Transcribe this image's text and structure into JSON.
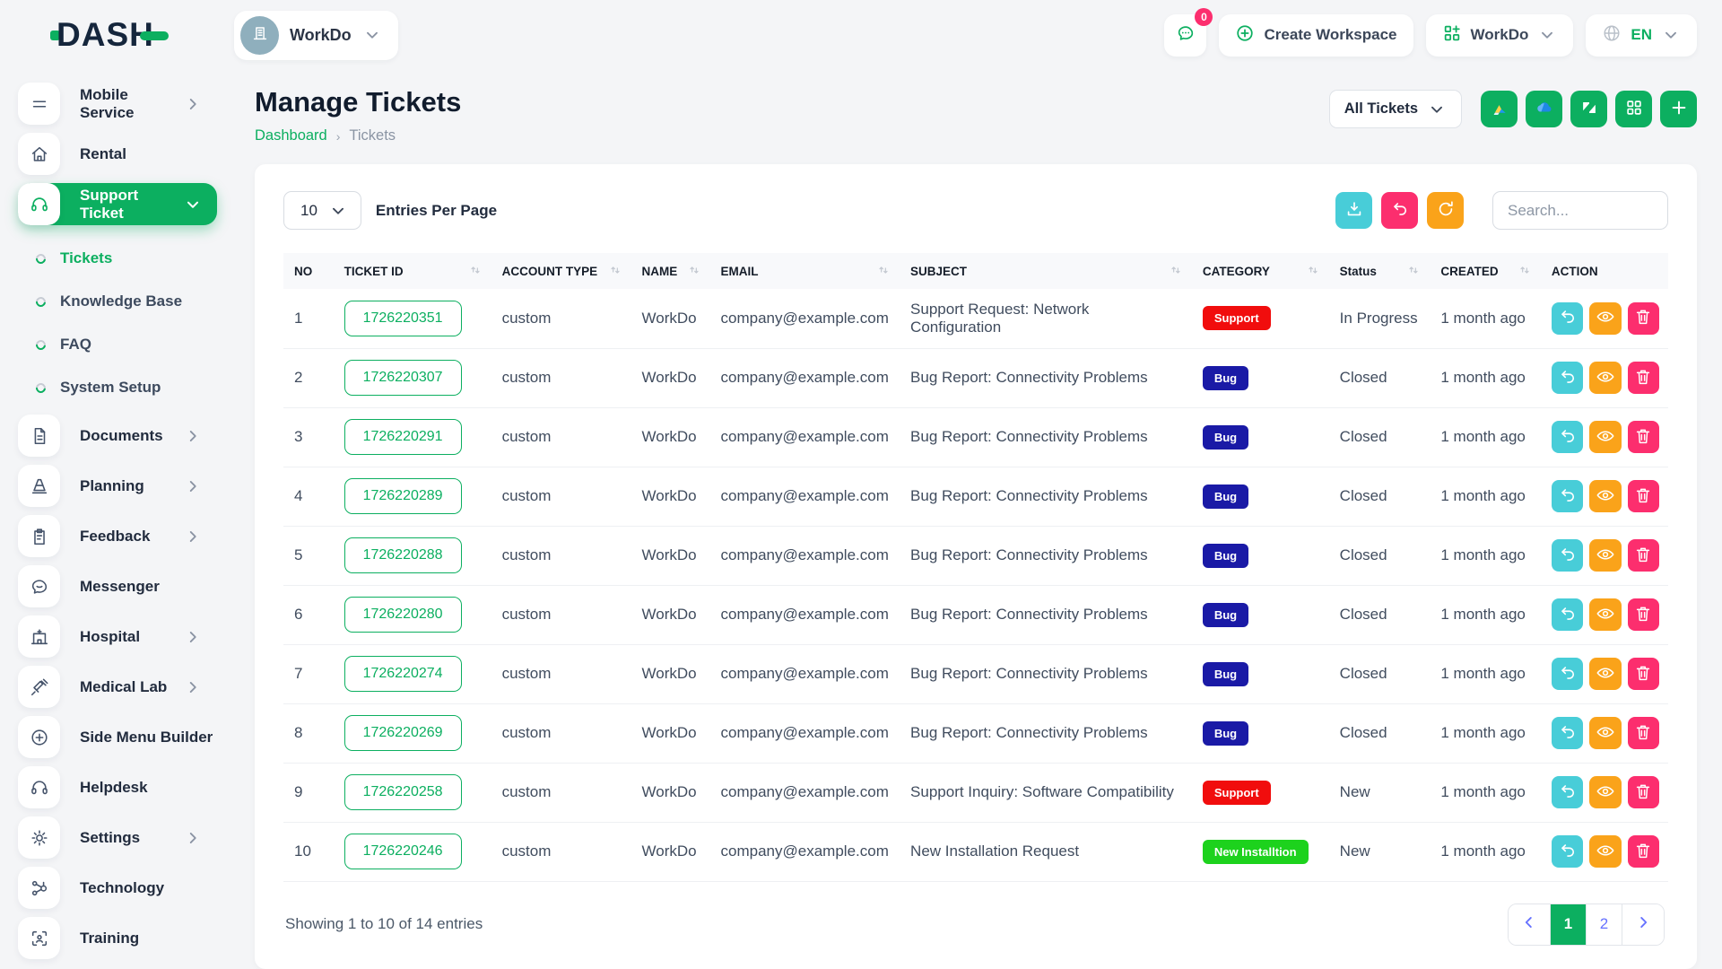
{
  "brand": {
    "logo_text": "DASH"
  },
  "topbar": {
    "workspace_name": "WorkDo",
    "chat_badge": "0",
    "create_workspace_label": "Create Workspace",
    "app_switcher_label": "WorkDo",
    "language": "EN"
  },
  "sidebar": {
    "items": [
      {
        "label": "Mobile Service",
        "icon": "menu",
        "chevron": "right"
      },
      {
        "label": "Rental",
        "icon": "home"
      },
      {
        "label": "Support Ticket",
        "icon": "headset",
        "chevron": "down",
        "active": true,
        "children": [
          {
            "label": "Tickets",
            "active": true
          },
          {
            "label": "Knowledge Base"
          },
          {
            "label": "FAQ"
          },
          {
            "label": "System Setup"
          }
        ]
      },
      {
        "label": "Documents",
        "icon": "document",
        "chevron": "right"
      },
      {
        "label": "Planning",
        "icon": "cone",
        "chevron": "right"
      },
      {
        "label": "Feedback",
        "icon": "clipboard",
        "chevron": "right"
      },
      {
        "label": "Messenger",
        "icon": "chat"
      },
      {
        "label": "Hospital",
        "icon": "hospital",
        "chevron": "right"
      },
      {
        "label": "Medical Lab",
        "icon": "syringe",
        "chevron": "right"
      },
      {
        "label": "Side Menu Builder",
        "icon": "plus-circle"
      },
      {
        "label": "Helpdesk",
        "icon": "headphones"
      },
      {
        "label": "Settings",
        "icon": "gear",
        "chevron": "right"
      },
      {
        "label": "Technology",
        "icon": "network"
      },
      {
        "label": "Training",
        "icon": "scan"
      }
    ]
  },
  "page": {
    "title": "Manage Tickets",
    "breadcrumb": [
      "Dashboard",
      "Tickets"
    ],
    "filter_value": "All Tickets",
    "header_actions": [
      "google-drive",
      "onedrive",
      "zendesk",
      "grid",
      "plus"
    ]
  },
  "toolbar": {
    "entries_value": "10",
    "entries_label": "Entries Per Page",
    "search_placeholder": "Search..."
  },
  "table": {
    "columns": [
      {
        "label": "NO",
        "sortable": false,
        "width": "3.6%"
      },
      {
        "label": "TICKET ID",
        "sortable": true,
        "width": "11.4%"
      },
      {
        "label": "ACCOUNT TYPE",
        "sortable": true,
        "width": "10.1%"
      },
      {
        "label": "NAME",
        "sortable": true,
        "width": "5.7%"
      },
      {
        "label": "EMAIL",
        "sortable": true,
        "width": "13.7%"
      },
      {
        "label": "SUBJECT",
        "sortable": true,
        "width": "21.1%"
      },
      {
        "label": "CATEGORY",
        "sortable": true,
        "width": "9.9%"
      },
      {
        "label": "Status",
        "sortable": true,
        "width": "7.3%"
      },
      {
        "label": "CREATED",
        "sortable": true,
        "width": "8%"
      },
      {
        "label": "ACTION",
        "sortable": false,
        "width": "9.2%"
      }
    ],
    "rows": [
      {
        "no": "1",
        "ticket_id": "1726220351",
        "account_type": "custom",
        "name": "WorkDo",
        "email": "company@example.com",
        "subject": "Support Request: Network Configuration",
        "category": {
          "label": "Support",
          "color": "#f10d0d"
        },
        "status": "In Progress",
        "created": "1 month ago"
      },
      {
        "no": "2",
        "ticket_id": "1726220307",
        "account_type": "custom",
        "name": "WorkDo",
        "email": "company@example.com",
        "subject": "Bug Report: Connectivity Problems",
        "category": {
          "label": "Bug",
          "color": "#1a1aa6"
        },
        "status": "Closed",
        "created": "1 month ago"
      },
      {
        "no": "3",
        "ticket_id": "1726220291",
        "account_type": "custom",
        "name": "WorkDo",
        "email": "company@example.com",
        "subject": "Bug Report: Connectivity Problems",
        "category": {
          "label": "Bug",
          "color": "#1a1aa6"
        },
        "status": "Closed",
        "created": "1 month ago"
      },
      {
        "no": "4",
        "ticket_id": "1726220289",
        "account_type": "custom",
        "name": "WorkDo",
        "email": "company@example.com",
        "subject": "Bug Report: Connectivity Problems",
        "category": {
          "label": "Bug",
          "color": "#1a1aa6"
        },
        "status": "Closed",
        "created": "1 month ago"
      },
      {
        "no": "5",
        "ticket_id": "1726220288",
        "account_type": "custom",
        "name": "WorkDo",
        "email": "company@example.com",
        "subject": "Bug Report: Connectivity Problems",
        "category": {
          "label": "Bug",
          "color": "#1a1aa6"
        },
        "status": "Closed",
        "created": "1 month ago"
      },
      {
        "no": "6",
        "ticket_id": "1726220280",
        "account_type": "custom",
        "name": "WorkDo",
        "email": "company@example.com",
        "subject": "Bug Report: Connectivity Problems",
        "category": {
          "label": "Bug",
          "color": "#1a1aa6"
        },
        "status": "Closed",
        "created": "1 month ago"
      },
      {
        "no": "7",
        "ticket_id": "1726220274",
        "account_type": "custom",
        "name": "WorkDo",
        "email": "company@example.com",
        "subject": "Bug Report: Connectivity Problems",
        "category": {
          "label": "Bug",
          "color": "#1a1aa6"
        },
        "status": "Closed",
        "created": "1 month ago"
      },
      {
        "no": "8",
        "ticket_id": "1726220269",
        "account_type": "custom",
        "name": "WorkDo",
        "email": "company@example.com",
        "subject": "Bug Report: Connectivity Problems",
        "category": {
          "label": "Bug",
          "color": "#1a1aa6"
        },
        "status": "Closed",
        "created": "1 month ago"
      },
      {
        "no": "9",
        "ticket_id": "1726220258",
        "account_type": "custom",
        "name": "WorkDo",
        "email": "company@example.com",
        "subject": "Support Inquiry: Software Compatibility",
        "category": {
          "label": "Support",
          "color": "#f10d0d"
        },
        "status": "New",
        "created": "1 month ago"
      },
      {
        "no": "10",
        "ticket_id": "1726220246",
        "account_type": "custom",
        "name": "WorkDo",
        "email": "company@example.com",
        "subject": "New Installation Request",
        "category": {
          "label": "New Installtion",
          "color": "#1dd21d"
        },
        "status": "New",
        "created": "1 month ago"
      }
    ],
    "row_action_icons": [
      "undo",
      "eye",
      "trash"
    ]
  },
  "footer": {
    "summary": "Showing 1 to 10 of 14 entries",
    "pages": [
      "1",
      "2"
    ],
    "active_page": "1"
  },
  "colors": {
    "primary": "#0caf60",
    "info": "#48cdd8",
    "warning": "#faa31a",
    "danger": "#fc2e6e",
    "link": "#6571ff"
  }
}
